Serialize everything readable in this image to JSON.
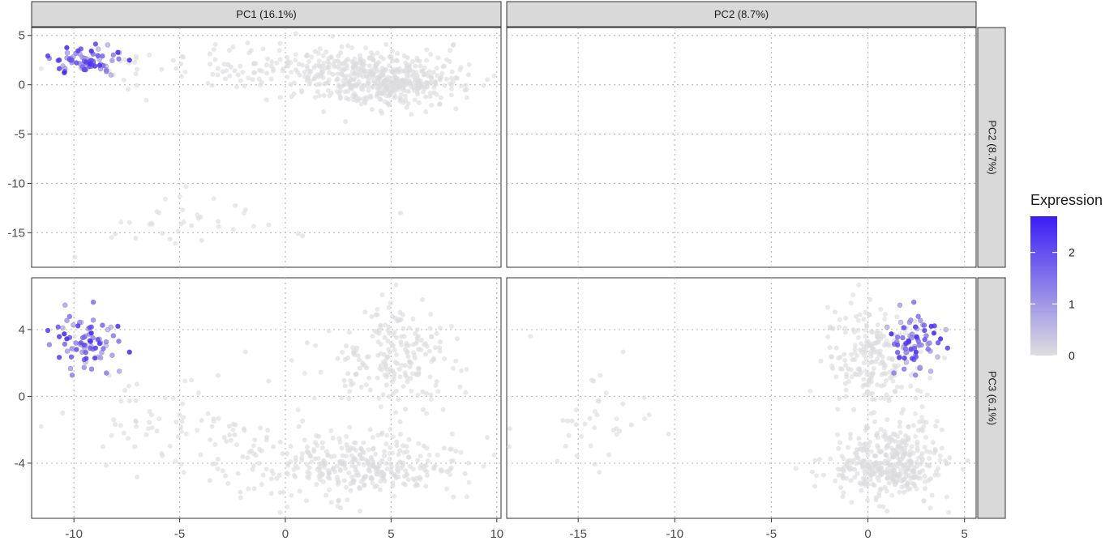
{
  "chart_data": {
    "type": "scatter",
    "layout": "facet-grid pairs plot (2 rows x 2 columns)",
    "columns": [
      {
        "label": "PC1 (16.1%)",
        "xlim": [
          -12,
          10.2
        ],
        "ticks": [
          -10,
          -5,
          0,
          5,
          10
        ]
      },
      {
        "label": "PC2 (8.7%)",
        "xlim": [
          -18.7,
          5.6
        ],
        "ticks": [
          -15,
          -10,
          -5,
          0,
          5
        ]
      }
    ],
    "rows": [
      {
        "label": "PC2 (8.7%)",
        "ylim": [
          -18.5,
          5.8
        ],
        "ticks": [
          5,
          0,
          -5,
          -10,
          -15
        ]
      },
      {
        "label": "PC3 (6.1%)",
        "ylim": [
          -7.3,
          7.1
        ],
        "ticks": [
          4,
          0,
          -4
        ]
      }
    ],
    "panels": [
      {
        "row": 0,
        "col": 0,
        "x": "PC1",
        "y": "PC2",
        "has_points": true
      },
      {
        "row": 0,
        "col": 1,
        "has_points": false
      },
      {
        "row": 1,
        "col": 0,
        "x": "PC1",
        "y": "PC3",
        "has_points": true
      },
      {
        "row": 1,
        "col": 1,
        "x": "PC2",
        "y": "PC3",
        "has_points": true
      }
    ],
    "color_scale": {
      "title": "Expression",
      "min": 0,
      "max": 2.7,
      "low": "#dedede",
      "high": "#3a1ef5",
      "ticks": [
        0,
        1,
        2
      ]
    },
    "clusters": [
      {
        "name": "",
        "expr": [
          0.4,
          2.7
        ],
        "count": 75,
        "pc1": {
          "mean": -9.3,
          "sd": 0.9
        },
        "pc2": {
          "mean": 2.4,
          "sd": 0.55
        },
        "pc3": {
          "mean": 3.3,
          "sd": 0.9
        }
      },
      {
        "name": "",
        "expr": [
          0,
          0.05
        ],
        "count": 230,
        "pc1": {
          "mean": 4.2,
          "sd": 2.2
        },
        "pc2": {
          "mean": 0.5,
          "sd": 1.3
        },
        "pc3": {
          "mean": -4.2,
          "sd": 0.9
        }
      },
      {
        "name": "",
        "expr": [
          0,
          0.05
        ],
        "count": 210,
        "pc1": {
          "mean": 5.1,
          "sd": 1.6
        },
        "pc2": {
          "mean": 0.2,
          "sd": 1.2
        },
        "pc3": {
          "mean": 2.2,
          "sd": 1.6
        }
      },
      {
        "name": "",
        "expr": [
          0,
          0.05
        ],
        "count": 150,
        "pc1": {
          "mean": 1.0,
          "sd": 2.8
        },
        "pc2": {
          "mean": 2.0,
          "sd": 1.2
        },
        "pc3": {
          "mean": -3.8,
          "sd": 1.3
        }
      },
      {
        "name": "",
        "expr": [
          0,
          0.05
        ],
        "count": 40,
        "pc1": {
          "mean": -4.5,
          "sd": 2.6
        },
        "pc2": {
          "mean": -14.3,
          "sd": 1.6
        },
        "pc3": {
          "mean": -1.4,
          "sd": 1.4
        }
      },
      {
        "name": "",
        "expr": [
          0,
          0.05
        ],
        "count": 25,
        "pc1": {
          "mean": -7.0,
          "sd": 1.8
        },
        "pc2": {
          "mean": 0.8,
          "sd": 1.3
        },
        "pc3": {
          "mean": -0.8,
          "sd": 1.6
        }
      }
    ]
  }
}
